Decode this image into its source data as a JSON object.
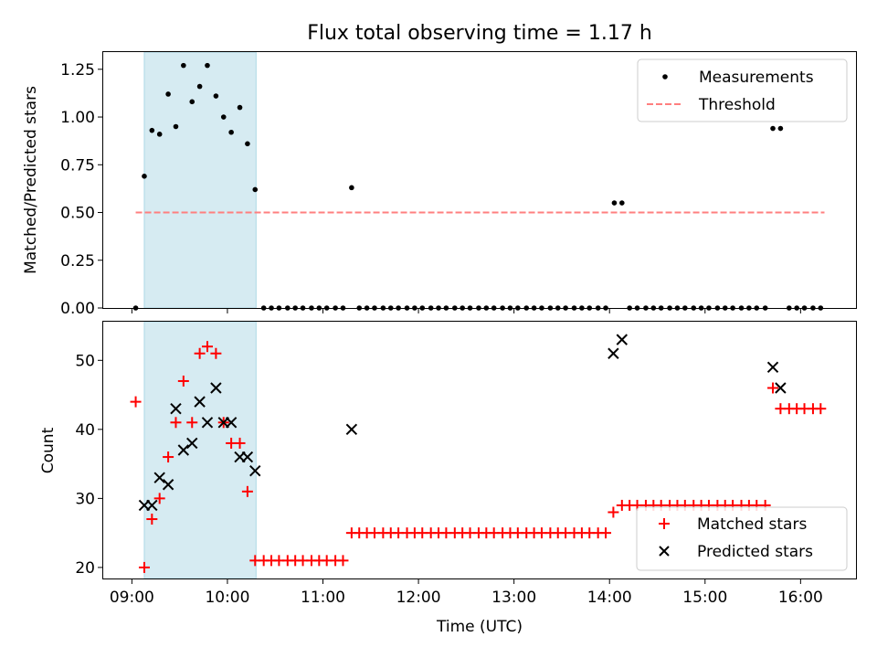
{
  "figure": {
    "title": "Flux total observing time = 1.17 h",
    "xlabel": "Time (UTC)"
  },
  "chart_data": [
    {
      "type": "scatter",
      "ylabel": "Matched/Predicted stars",
      "xlim": [
        8.7,
        16.58
      ],
      "ylim": [
        0,
        1.34
      ],
      "yticks": [
        0,
        0.25,
        0.5,
        0.75,
        1.0,
        1.25
      ],
      "ytick_labels": [
        "0.00",
        "0.25",
        "0.50",
        "0.75",
        "1.00",
        "1.25"
      ],
      "shaded_span": [
        9.13,
        10.3
      ],
      "legend": {
        "position": "top-right",
        "entries": [
          "Measurements",
          "Threshold"
        ]
      },
      "threshold": {
        "label": "Threshold",
        "y": 0.5,
        "x_range": [
          9.04,
          16.25
        ],
        "color": "#ff7f7f"
      },
      "measurements": {
        "label": "Measurements",
        "color": "#000000",
        "points": [
          [
            9.04,
            0.0
          ],
          [
            9.13,
            0.69
          ],
          [
            9.21,
            0.93
          ],
          [
            9.29,
            0.91
          ],
          [
            9.38,
            1.12
          ],
          [
            9.46,
            0.95
          ],
          [
            9.54,
            1.27
          ],
          [
            9.63,
            1.08
          ],
          [
            9.71,
            1.16
          ],
          [
            9.79,
            1.27
          ],
          [
            9.88,
            1.11
          ],
          [
            9.96,
            1.0
          ],
          [
            10.04,
            0.92
          ],
          [
            10.13,
            1.05
          ],
          [
            10.21,
            0.86
          ],
          [
            10.29,
            0.62
          ],
          [
            10.38,
            0.0
          ],
          [
            10.46,
            0.0
          ],
          [
            10.54,
            0.0
          ],
          [
            10.63,
            0.0
          ],
          [
            10.71,
            0.0
          ],
          [
            10.79,
            0.0
          ],
          [
            10.88,
            0.0
          ],
          [
            10.96,
            0.0
          ],
          [
            11.04,
            0.0
          ],
          [
            11.13,
            0.0
          ],
          [
            11.21,
            0.0
          ],
          [
            11.3,
            0.63
          ],
          [
            11.38,
            0.0
          ],
          [
            11.46,
            0.0
          ],
          [
            11.54,
            0.0
          ],
          [
            11.63,
            0.0
          ],
          [
            11.71,
            0.0
          ],
          [
            11.79,
            0.0
          ],
          [
            11.88,
            0.0
          ],
          [
            11.96,
            0.0
          ],
          [
            12.04,
            0.0
          ],
          [
            12.13,
            0.0
          ],
          [
            12.21,
            0.0
          ],
          [
            12.29,
            0.0
          ],
          [
            12.38,
            0.0
          ],
          [
            12.46,
            0.0
          ],
          [
            12.54,
            0.0
          ],
          [
            12.63,
            0.0
          ],
          [
            12.71,
            0.0
          ],
          [
            12.79,
            0.0
          ],
          [
            12.88,
            0.0
          ],
          [
            12.96,
            0.0
          ],
          [
            13.04,
            0.0
          ],
          [
            13.13,
            0.0
          ],
          [
            13.21,
            0.0
          ],
          [
            13.29,
            0.0
          ],
          [
            13.38,
            0.0
          ],
          [
            13.46,
            0.0
          ],
          [
            13.54,
            0.0
          ],
          [
            13.63,
            0.0
          ],
          [
            13.71,
            0.0
          ],
          [
            13.79,
            0.0
          ],
          [
            13.88,
            0.0
          ],
          [
            13.96,
            0.0
          ],
          [
            14.05,
            0.55
          ],
          [
            14.13,
            0.55
          ],
          [
            14.21,
            0.0
          ],
          [
            14.29,
            0.0
          ],
          [
            14.38,
            0.0
          ],
          [
            14.46,
            0.0
          ],
          [
            14.54,
            0.0
          ],
          [
            14.63,
            0.0
          ],
          [
            14.71,
            0.0
          ],
          [
            14.79,
            0.0
          ],
          [
            14.88,
            0.0
          ],
          [
            14.96,
            0.0
          ],
          [
            15.04,
            0.0
          ],
          [
            15.13,
            0.0
          ],
          [
            15.21,
            0.0
          ],
          [
            15.29,
            0.0
          ],
          [
            15.38,
            0.0
          ],
          [
            15.46,
            0.0
          ],
          [
            15.54,
            0.0
          ],
          [
            15.63,
            0.0
          ],
          [
            15.71,
            0.94
          ],
          [
            15.79,
            0.94
          ],
          [
            15.88,
            0.0
          ],
          [
            15.96,
            0.0
          ],
          [
            16.04,
            0.0
          ],
          [
            16.13,
            0.0
          ],
          [
            16.21,
            0.0
          ]
        ]
      }
    },
    {
      "type": "scatter",
      "ylabel": "Count",
      "xlim": [
        8.7,
        16.58
      ],
      "ylim": [
        18.4,
        55.6
      ],
      "yticks": [
        20,
        30,
        40,
        50
      ],
      "ytick_labels": [
        "20",
        "30",
        "40",
        "50"
      ],
      "xticks": [
        9,
        10,
        11,
        12,
        13,
        14,
        15,
        16
      ],
      "xtick_labels": [
        "09:00",
        "10:00",
        "11:00",
        "12:00",
        "13:00",
        "14:00",
        "15:00",
        "16:00"
      ],
      "shaded_span": [
        9.13,
        10.3
      ],
      "legend": {
        "position": "bottom-right",
        "entries": [
          "Matched stars",
          "Predicted stars"
        ]
      },
      "series": [
        {
          "name": "Matched stars",
          "marker": "plus",
          "color": "#ff0000",
          "points": [
            [
              9.04,
              44
            ],
            [
              9.13,
              20
            ],
            [
              9.21,
              27
            ],
            [
              9.29,
              30
            ],
            [
              9.38,
              36
            ],
            [
              9.46,
              41
            ],
            [
              9.54,
              47
            ],
            [
              9.63,
              41
            ],
            [
              9.71,
              51
            ],
            [
              9.79,
              52
            ],
            [
              9.88,
              51
            ],
            [
              9.96,
              41
            ],
            [
              10.04,
              38
            ],
            [
              10.13,
              38
            ],
            [
              10.21,
              31
            ],
            [
              10.29,
              21
            ],
            [
              10.38,
              21
            ],
            [
              10.46,
              21
            ],
            [
              10.54,
              21
            ],
            [
              10.63,
              21
            ],
            [
              10.71,
              21
            ],
            [
              10.79,
              21
            ],
            [
              10.88,
              21
            ],
            [
              10.96,
              21
            ],
            [
              11.04,
              21
            ],
            [
              11.13,
              21
            ],
            [
              11.21,
              21
            ],
            [
              11.3,
              25
            ],
            [
              11.38,
              25
            ],
            [
              11.46,
              25
            ],
            [
              11.54,
              25
            ],
            [
              11.63,
              25
            ],
            [
              11.71,
              25
            ],
            [
              11.79,
              25
            ],
            [
              11.88,
              25
            ],
            [
              11.96,
              25
            ],
            [
              12.04,
              25
            ],
            [
              12.13,
              25
            ],
            [
              12.21,
              25
            ],
            [
              12.29,
              25
            ],
            [
              12.38,
              25
            ],
            [
              12.46,
              25
            ],
            [
              12.54,
              25
            ],
            [
              12.63,
              25
            ],
            [
              12.71,
              25
            ],
            [
              12.79,
              25
            ],
            [
              12.88,
              25
            ],
            [
              12.96,
              25
            ],
            [
              13.04,
              25
            ],
            [
              13.13,
              25
            ],
            [
              13.21,
              25
            ],
            [
              13.29,
              25
            ],
            [
              13.38,
              25
            ],
            [
              13.46,
              25
            ],
            [
              13.54,
              25
            ],
            [
              13.63,
              25
            ],
            [
              13.71,
              25
            ],
            [
              13.79,
              25
            ],
            [
              13.88,
              25
            ],
            [
              13.96,
              25
            ],
            [
              14.04,
              28
            ],
            [
              14.13,
              29
            ],
            [
              14.21,
              29
            ],
            [
              14.29,
              29
            ],
            [
              14.38,
              29
            ],
            [
              14.46,
              29
            ],
            [
              14.54,
              29
            ],
            [
              14.63,
              29
            ],
            [
              14.71,
              29
            ],
            [
              14.79,
              29
            ],
            [
              14.88,
              29
            ],
            [
              14.96,
              29
            ],
            [
              15.04,
              29
            ],
            [
              15.13,
              29
            ],
            [
              15.21,
              29
            ],
            [
              15.29,
              29
            ],
            [
              15.38,
              29
            ],
            [
              15.46,
              29
            ],
            [
              15.54,
              29
            ],
            [
              15.63,
              29
            ],
            [
              15.71,
              46
            ],
            [
              15.79,
              43
            ],
            [
              15.88,
              43
            ],
            [
              15.96,
              43
            ],
            [
              16.04,
              43
            ],
            [
              16.13,
              43
            ],
            [
              16.21,
              43
            ]
          ]
        },
        {
          "name": "Predicted stars",
          "marker": "x",
          "color": "#000000",
          "points": [
            [
              9.13,
              29
            ],
            [
              9.21,
              29
            ],
            [
              9.29,
              33
            ],
            [
              9.38,
              32
            ],
            [
              9.46,
              43
            ],
            [
              9.54,
              37
            ],
            [
              9.63,
              38
            ],
            [
              9.71,
              44
            ],
            [
              9.79,
              41
            ],
            [
              9.88,
              46
            ],
            [
              9.96,
              41
            ],
            [
              10.04,
              41
            ],
            [
              10.13,
              36
            ],
            [
              10.21,
              36
            ],
            [
              10.29,
              34
            ],
            [
              11.3,
              40
            ],
            [
              14.04,
              51
            ],
            [
              14.13,
              53
            ],
            [
              15.71,
              49
            ],
            [
              15.79,
              46
            ]
          ]
        }
      ]
    }
  ]
}
